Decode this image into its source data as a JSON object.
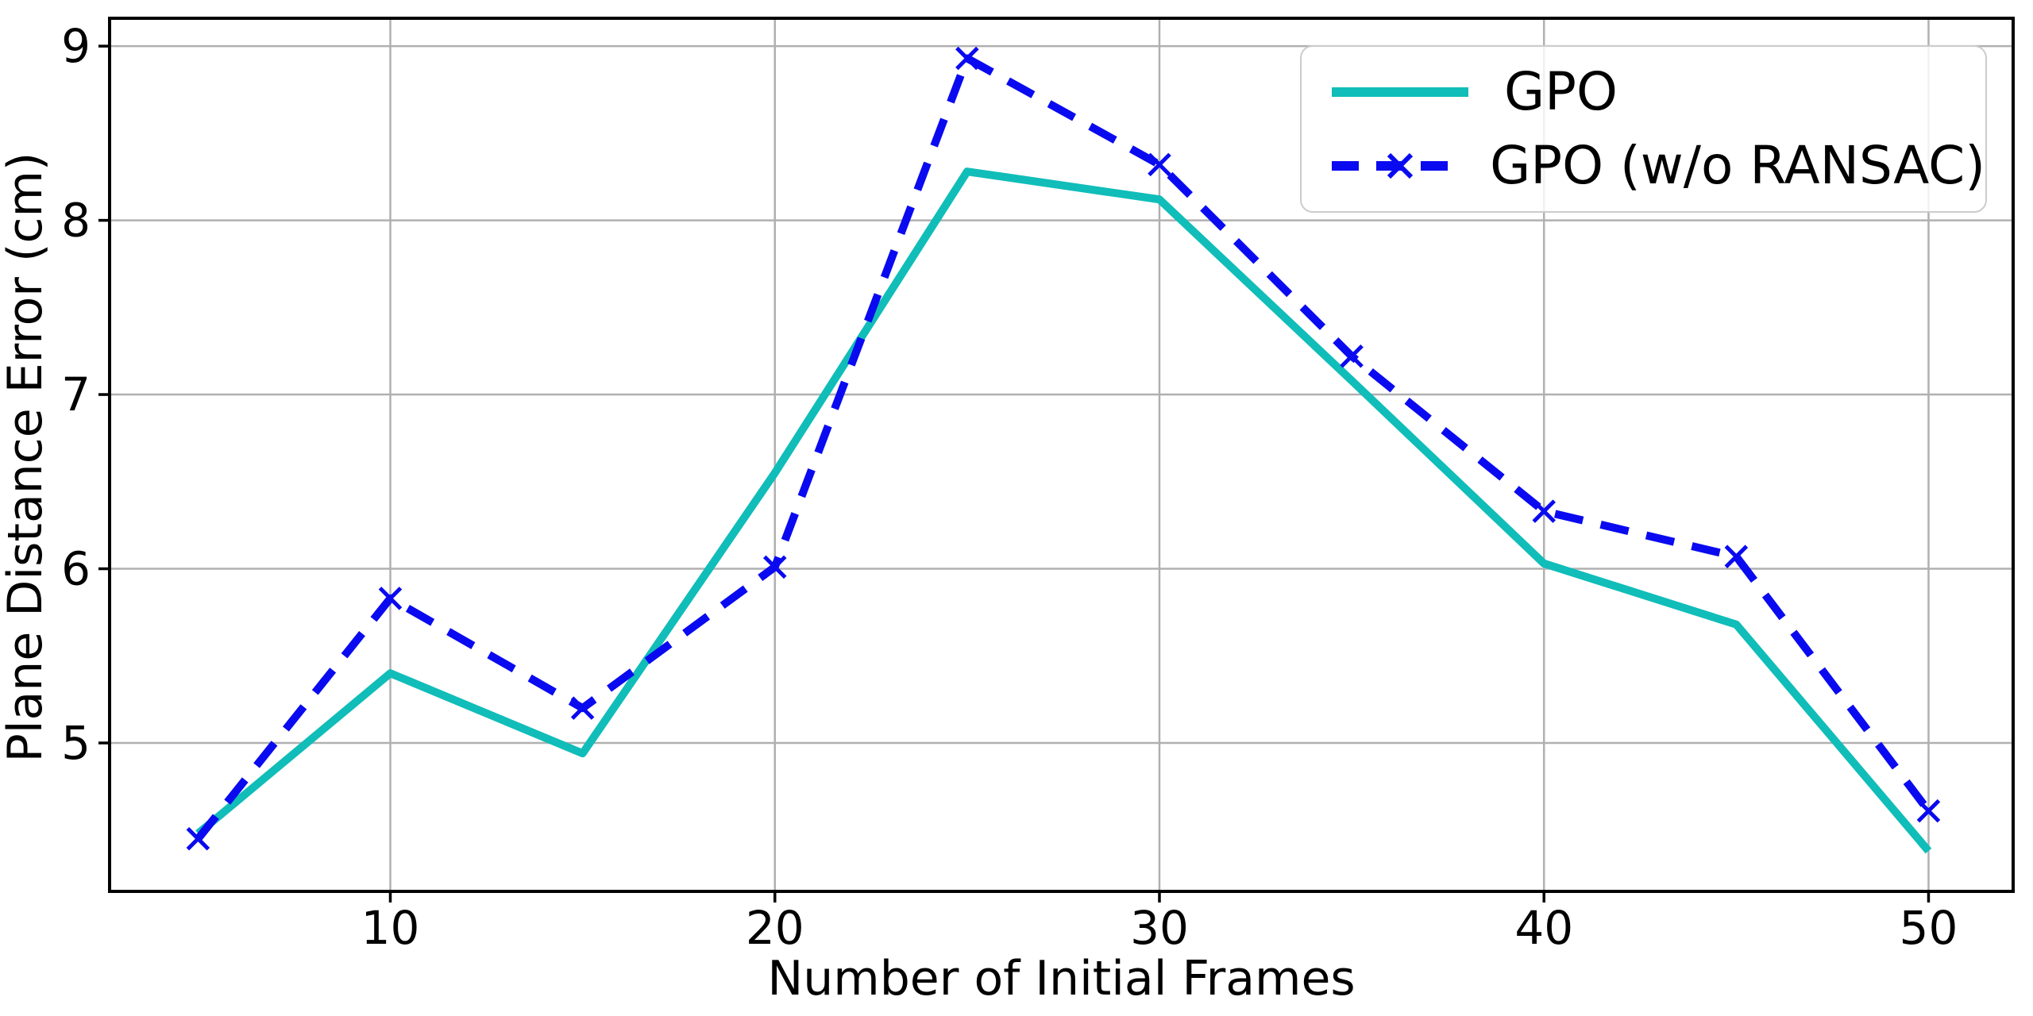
{
  "figure": {
    "background": "#ffffff",
    "xlabel": "Number of Initial Frames",
    "ylabel": "Plane Distance Error (cm)"
  },
  "legend": {
    "items": [
      {
        "label": "GPO",
        "color": "#10bdb9",
        "style": "solid"
      },
      {
        "label": "GPO (w/o RANSAC)",
        "color": "#0a0af0",
        "style": "dashed-x"
      }
    ]
  },
  "chart_data": {
    "type": "line",
    "title": "",
    "xlabel": "Number of Initial Frames",
    "ylabel": "Plane Distance Error (cm)",
    "x": [
      5,
      10,
      15,
      20,
      25,
      30,
      35,
      40,
      45,
      50
    ],
    "series": [
      {
        "name": "GPO",
        "color": "#10bdb9",
        "line_style": "solid",
        "marker": "none",
        "values": [
          4.48,
          5.4,
          4.94,
          6.55,
          8.28,
          8.12,
          7.08,
          6.03,
          5.68,
          4.38
        ]
      },
      {
        "name": "GPO (w/o RANSAC)",
        "color": "#0a0af0",
        "line_style": "dashed",
        "marker": "x",
        "values": [
          4.45,
          5.83,
          5.2,
          6.01,
          8.93,
          8.32,
          7.22,
          6.33,
          6.07,
          4.61
        ]
      }
    ],
    "xticks": [
      10,
      20,
      30,
      40,
      50
    ],
    "yticks": [
      5,
      6,
      7,
      8,
      9
    ],
    "xlim": [
      2.7,
      52.2
    ],
    "ylim": [
      4.148,
      9.16
    ],
    "grid": true,
    "grid_color": "#b0b0b0",
    "axis_color": "#000000",
    "legend_position": "upper right"
  }
}
